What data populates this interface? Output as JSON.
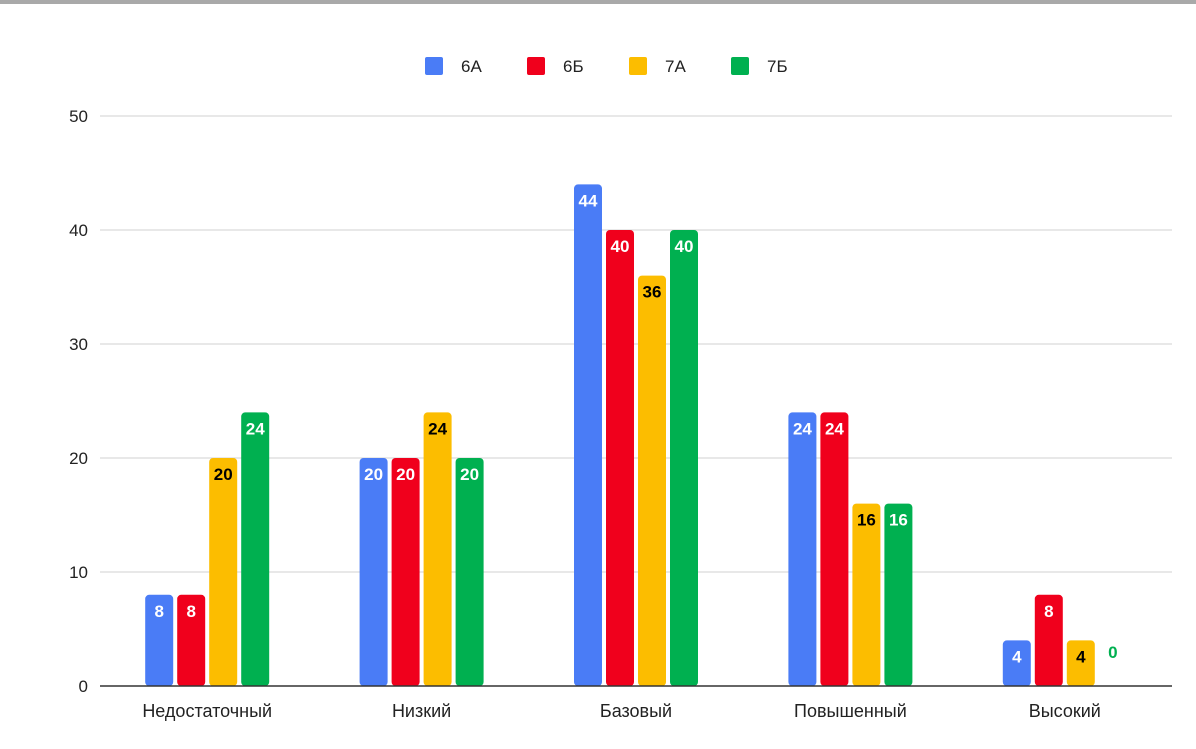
{
  "chart_data": {
    "type": "bar",
    "title": "",
    "xlabel": "",
    "ylabel": "",
    "categories": [
      "Недостаточный",
      "Низкий",
      "Базовый",
      "Повышенный",
      "Высокий"
    ],
    "series": [
      {
        "name": "6А",
        "color": "#4a7cf6",
        "values": [
          8,
          20,
          44,
          24,
          4
        ],
        "label_color": "#ffffff"
      },
      {
        "name": "6Б",
        "color": "#f0001c",
        "values": [
          8,
          20,
          40,
          24,
          8
        ],
        "label_color": "#ffffff"
      },
      {
        "name": "7А",
        "color": "#fcbd00",
        "values": [
          20,
          24,
          36,
          16,
          4
        ],
        "label_color": "#000000"
      },
      {
        "name": "7Б",
        "color": "#00b050",
        "values": [
          24,
          20,
          40,
          16,
          0
        ],
        "label_color": "#ffffff"
      }
    ],
    "ylim": [
      0,
      50
    ],
    "yticks": [
      0,
      10,
      20,
      30,
      40,
      50
    ],
    "grid": true,
    "legend": "top-center",
    "data_labels": true
  }
}
